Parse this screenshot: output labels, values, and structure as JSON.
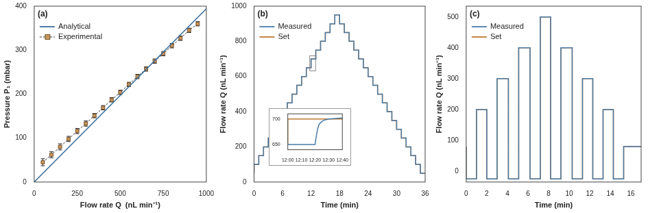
{
  "chart_data": [
    {
      "type": "scatter",
      "title": "(a)",
      "x_label": "Flow rate Q  (nL min⁻¹)",
      "y_label": "Pressure P₁ (mbar)",
      "xlim": [
        0,
        1000
      ],
      "xticks": [
        0,
        250,
        500,
        750,
        1000
      ],
      "ylim": [
        0,
        400
      ],
      "yticks": [
        0,
        100,
        200,
        300,
        400
      ],
      "grid": false,
      "legend": "upper left",
      "series": [
        {
          "name": "Analytical",
          "type": "line",
          "color": "#3b6e9c",
          "line_style": "solid",
          "x": [
            0,
            1000
          ],
          "values": [
            0,
            394
          ]
        },
        {
          "name": "Experimental",
          "type": "scatter",
          "color": "#c8955a",
          "marker": "square",
          "line_style": "dashed",
          "x": [
            50,
            100,
            150,
            200,
            250,
            300,
            350,
            400,
            450,
            500,
            550,
            600,
            650,
            700,
            750,
            800,
            850,
            900,
            950
          ],
          "values": [
            45,
            62,
            80,
            98,
            116,
            133,
            151,
            169,
            187,
            204,
            222,
            240,
            257,
            275,
            292,
            310,
            327,
            345,
            360
          ],
          "errors": [
            8,
            7,
            7,
            6,
            6,
            6,
            5,
            5,
            5,
            5,
            5,
            5,
            5,
            5,
            5,
            5,
            5,
            5,
            5
          ]
        }
      ]
    },
    {
      "type": "line",
      "title": "(b)",
      "x_label": "Time (min)",
      "y_label": "Flow rate Q (nL min⁻¹)",
      "xlim": [
        0,
        36
      ],
      "xticks": [
        0,
        6,
        12,
        18,
        24,
        30,
        36
      ],
      "ylim": [
        0,
        1000
      ],
      "yticks": [
        0,
        200,
        400,
        600,
        800,
        1000
      ],
      "grid": false,
      "legend": "upper left",
      "series": [
        {
          "name": "Measured",
          "color": "#4a7ba6",
          "line_style": "steps",
          "x": [
            0,
            1,
            2,
            3,
            4,
            5,
            6,
            7,
            8,
            9,
            10,
            11,
            12,
            13,
            14,
            15,
            16,
            17,
            18,
            19,
            20,
            21,
            22,
            23,
            24,
            25,
            26,
            27,
            28,
            29,
            30,
            31,
            32,
            33,
            34,
            35,
            36
          ],
          "values": [
            50,
            100,
            150,
            200,
            250,
            300,
            350,
            400,
            450,
            500,
            550,
            600,
            650,
            700,
            750,
            800,
            850,
            900,
            950,
            900,
            850,
            800,
            750,
            700,
            650,
            600,
            550,
            500,
            450,
            400,
            350,
            300,
            250,
            200,
            150,
            100,
            50
          ]
        },
        {
          "name": "Set",
          "color": "#c07a30",
          "line_style": "steps",
          "x": [
            0,
            1,
            2,
            3,
            4,
            5,
            6,
            7,
            8,
            9,
            10,
            11,
            12,
            13,
            14,
            15,
            16,
            17,
            18,
            19,
            20,
            21,
            22,
            23,
            24,
            25,
            26,
            27,
            28,
            29,
            30,
            31,
            32,
            33,
            34,
            35,
            36
          ],
          "values": [
            50,
            100,
            150,
            200,
            250,
            300,
            350,
            400,
            450,
            500,
            550,
            600,
            650,
            700,
            750,
            800,
            850,
            900,
            950,
            900,
            850,
            800,
            750,
            700,
            650,
            600,
            550,
            500,
            450,
            400,
            350,
            300,
            250,
            200,
            150,
            100,
            50
          ]
        }
      ]
    },
    {
      "type": "line",
      "title": "(c)",
      "x_label": "Time (min)",
      "y_label": "Flow rate Q (nL min⁻¹)",
      "xlim": [
        0,
        17
      ],
      "xticks": [
        0,
        2,
        4,
        6,
        8,
        10,
        12,
        14,
        16
      ],
      "ylim": [
        -35,
        535
      ],
      "yticks": [
        0,
        100,
        200,
        300,
        400,
        500
      ],
      "grid": false,
      "legend": "upper left",
      "series": [
        {
          "name": "Measured",
          "color": "#4a7ba6",
          "line_style": "steps",
          "x": [
            0,
            1,
            2,
            3,
            4.1,
            5.1,
            6.2,
            7.2,
            8.2,
            9.2,
            10.3,
            11.3,
            12.3,
            13.3,
            14.3,
            15.3,
            16.3,
            17
          ],
          "values": [
            80,
            -25,
            200,
            -25,
            300,
            -25,
            400,
            -25,
            500,
            -25,
            400,
            -25,
            300,
            -25,
            200,
            -25,
            80,
            80
          ]
        },
        {
          "name": "Set",
          "color": "#c07a30",
          "line_style": "steps",
          "x": [
            0,
            1,
            2,
            3,
            4.1,
            5.1,
            6.2,
            7.2,
            8.2,
            9.2,
            10.3,
            11.3,
            12.3,
            13.3,
            14.3,
            15.3,
            16.3,
            17
          ],
          "values": [
            80,
            -25,
            200,
            -25,
            300,
            -25,
            400,
            -25,
            500,
            -25,
            400,
            -25,
            300,
            -25,
            200,
            -25,
            80,
            80
          ]
        }
      ]
    },
    {
      "type": "line",
      "xlim": [
        12,
        12.6667
      ],
      "xticks": [
        {
          "value": 12,
          "label": "12:00"
        },
        {
          "value": 12.1667,
          "label": "12:10"
        },
        {
          "value": 12.3333,
          "label": "12:20"
        },
        {
          "value": 12.5,
          "label": "12:30"
        },
        {
          "value": 12.6667,
          "label": "12:40"
        }
      ],
      "ylim": [
        640,
        710
      ],
      "yticks": [
        650,
        700
      ],
      "grid": false,
      "series": [
        {
          "name": "Measured",
          "color": "#4a7ba6",
          "line_style": "solid",
          "x": [
            12,
            12.3333,
            12.35,
            12.3667,
            12.3833,
            12.4167,
            12.45,
            12.5,
            12.6667
          ],
          "values": [
            650,
            650,
            668,
            682,
            690,
            695,
            698,
            700,
            702
          ]
        },
        {
          "name": "Set",
          "color": "#c07a30",
          "line_style": "steps",
          "x": [
            12,
            12.3333,
            12.6667
          ],
          "values": [
            650,
            700,
            700
          ]
        }
      ]
    }
  ]
}
